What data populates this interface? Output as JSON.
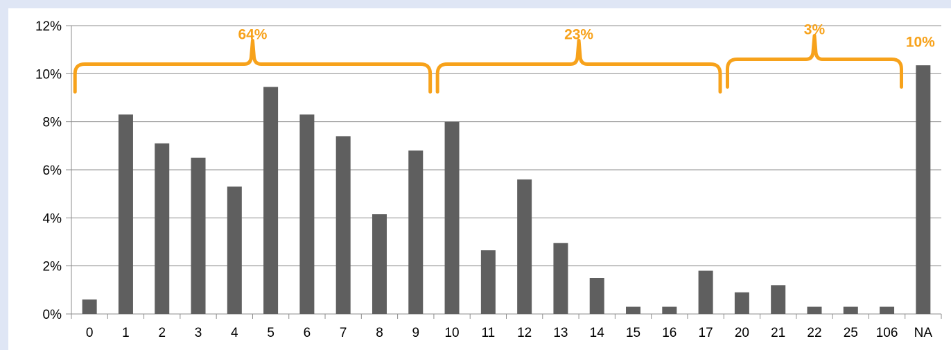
{
  "chart_data": {
    "type": "bar",
    "categories": [
      "0",
      "1",
      "2",
      "3",
      "4",
      "5",
      "6",
      "7",
      "8",
      "9",
      "10",
      "11",
      "12",
      "13",
      "14",
      "15",
      "16",
      "17",
      "20",
      "21",
      "22",
      "25",
      "106",
      "NA"
    ],
    "values": [
      0.6,
      8.3,
      7.1,
      6.5,
      5.3,
      9.45,
      8.3,
      7.4,
      4.15,
      6.8,
      8.0,
      2.65,
      5.6,
      2.95,
      1.5,
      0.3,
      0.3,
      1.8,
      0.9,
      1.2,
      0.3,
      0.3,
      0.3,
      10.35
    ],
    "ylim": [
      0,
      12
    ],
    "yticks": [
      0,
      2,
      4,
      6,
      8,
      10,
      12
    ],
    "ytick_labels": [
      "0%",
      "2%",
      "4%",
      "6%",
      "8%",
      "10%",
      "12%"
    ],
    "grid": true,
    "title": "",
    "xlabel": "",
    "ylabel": "",
    "annotations": [
      {
        "label": "64%",
        "start_category": "0",
        "end_category": "9",
        "y": 10.4
      },
      {
        "label": "23%",
        "start_category": "10",
        "end_category": "17",
        "y": 10.4
      },
      {
        "label": "3%",
        "start_category": "20",
        "end_category": "106",
        "y": 10.6
      },
      {
        "label": "10%",
        "category": "NA",
        "y": 11.3
      }
    ]
  },
  "colors": {
    "bar": "#5f5f5f",
    "annotation": "#f7a21b",
    "grid": "#8c8c8c",
    "axis": "#8c8c8c",
    "background": "#dfe6f5"
  }
}
